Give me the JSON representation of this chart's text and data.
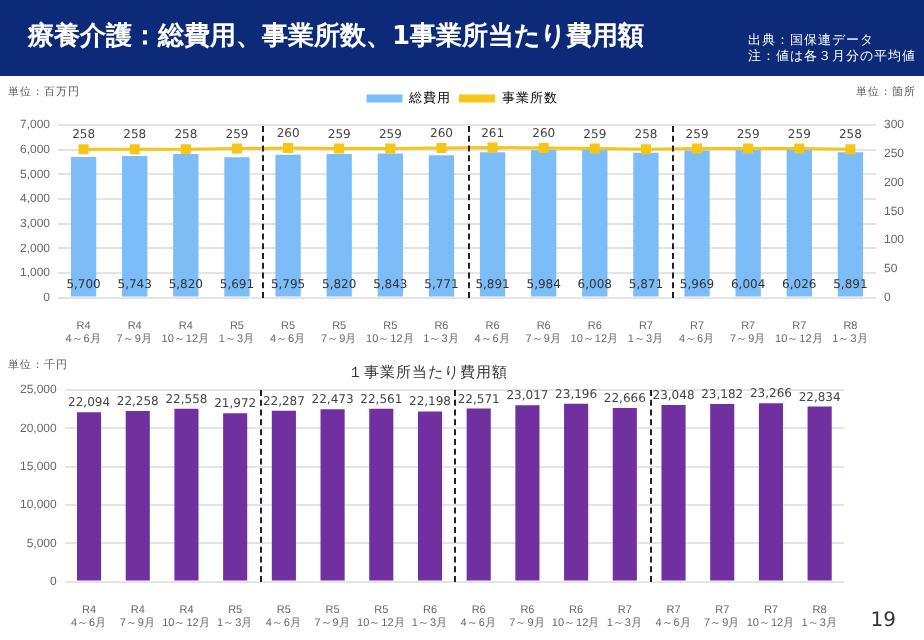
{
  "chart_data": [
    {
      "type": "bar",
      "title": "療養介護：総費用、事業所数、1事業所当たり費用額",
      "annotations": [
        "出典：国保連データ",
        "注：値は各３月分の平均値"
      ],
      "categories": [
        "R4 4～6月",
        "R4 7～9月",
        "R4 10～12月",
        "R5 1～3月",
        "R5 4～6月",
        "R5 7～9月",
        "R5 10～12月",
        "R6 1～3月",
        "R6 4～6月",
        "R6 7～9月",
        "R6 10～12月",
        "R7 1～3月",
        "R7 4～6月",
        "R7 7～9月",
        "R7 10～12月",
        "R8 1～3月"
      ],
      "series": [
        {
          "name": "総費用",
          "type": "bar",
          "color": "#7dbdf7",
          "values": [
            5700,
            5743,
            5820,
            5691,
            5795,
            5820,
            5843,
            5771,
            5891,
            5984,
            6008,
            5871,
            5969,
            6004,
            6026,
            5891
          ],
          "value_labels": [
            "5,700",
            "5,743",
            "5,820",
            "5,691",
            "5,795",
            "5,820",
            "5,843",
            "5,771",
            "5,891",
            "5,984",
            "6,008",
            "5,871",
            "5,969",
            "6,004",
            "6,026",
            "5,891"
          ]
        },
        {
          "name": "事業所数",
          "type": "line",
          "axis": "y2",
          "color": "#f5c518",
          "values": [
            258,
            258,
            258,
            259,
            260,
            259,
            259,
            260,
            261,
            260,
            259,
            258,
            259,
            259,
            259,
            258
          ],
          "value_labels": [
            "258",
            "258",
            "258",
            "259",
            "260",
            "259",
            "259",
            "260",
            "261",
            "260",
            "259",
            "258",
            "259",
            "259",
            "259",
            "258"
          ]
        }
      ],
      "ylabel": "単位：百万円",
      "y2label": "単位：箇所",
      "ylim": [
        0,
        7000
      ],
      "yticks": [
        {
          "value": 0,
          "label": "0"
        },
        {
          "value": 1000,
          "label": "1,000"
        },
        {
          "value": 2000,
          "label": "2,000"
        },
        {
          "value": 3000,
          "label": "3,000"
        },
        {
          "value": 4000,
          "label": "4,000"
        },
        {
          "value": 5000,
          "label": "5,000"
        },
        {
          "value": 6000,
          "label": "6,000"
        },
        {
          "value": 7000,
          "label": "7,000"
        }
      ],
      "y2lim": [
        0,
        300
      ],
      "y2ticks": [
        0,
        50,
        100,
        150,
        200,
        250,
        300
      ],
      "grid": "y",
      "legend": "top",
      "marker": "square"
    },
    {
      "type": "bar",
      "title": "１事業所当たり費用額",
      "ylabel": "単位：千円",
      "categories": [
        "R4 4～6月",
        "R4 7～9月",
        "R4 10～12月",
        "R5 1～3月",
        "R5 4～6月",
        "R5 7～9月",
        "R5 10～12月",
        "R6 1～3月",
        "R6 4～6月",
        "R6 7～9月",
        "R6 10～12月",
        "R7 1～3月",
        "R7 4～6月",
        "R7 7～9月",
        "R7 10～12月",
        "R8 1～3月"
      ],
      "series": [
        {
          "color": "#7030a0",
          "values": [
            22094,
            22258,
            22558,
            21972,
            22287,
            22473,
            22561,
            22198,
            22571,
            23017,
            23196,
            22666,
            23048,
            23182,
            23266,
            22834
          ],
          "value_labels": [
            "22,094",
            "22,258",
            "22,558",
            "21,972",
            "22,287",
            "22,473",
            "22,561",
            "22,198",
            "22,571",
            "23,017",
            "23,196",
            "22,666",
            "23,048",
            "23,182",
            "23,266",
            "22,834"
          ]
        }
      ],
      "annotations": [
        "19"
      ],
      "ylim": [
        0,
        25000
      ],
      "yticks": [
        {
          "value": 0,
          "label": "0"
        },
        {
          "value": 5000,
          "label": "5,000"
        },
        {
          "value": 10000,
          "label": "10,000"
        },
        {
          "value": 15000,
          "label": "15,000"
        },
        {
          "value": 20000,
          "label": "20,000"
        },
        {
          "value": 25000,
          "label": "25,000"
        }
      ],
      "grid": "y"
    }
  ]
}
